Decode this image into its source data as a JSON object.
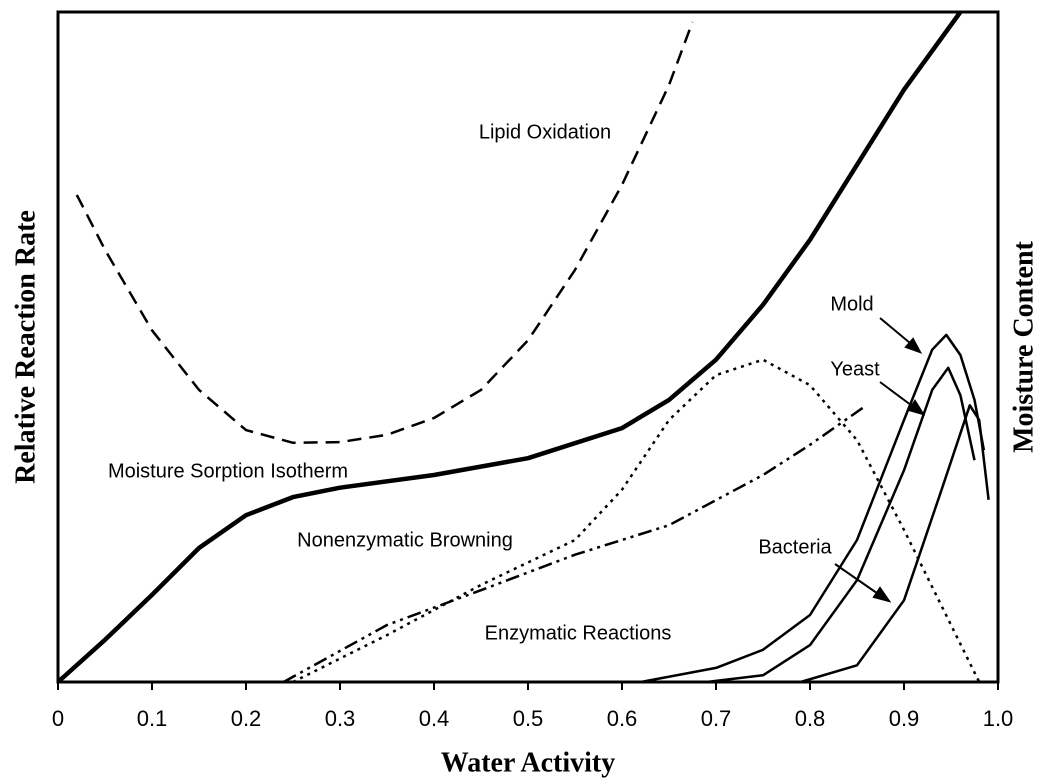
{
  "chart_data": {
    "type": "line",
    "xlabel": "Water Activity",
    "ylabel": "Relative Reaction Rate",
    "y2label": "Moisture Content",
    "xlim": [
      0,
      1
    ],
    "ylim": [
      0,
      100
    ],
    "xticks": [
      0,
      0.1,
      0.2,
      0.3,
      0.4,
      0.5,
      0.6,
      0.7,
      0.8,
      0.9,
      {
        "value": 1,
        "label": "1.0"
      }
    ],
    "series": [
      {
        "name": "Moisture Sorption Isotherm",
        "color": "#000",
        "style": "solid",
        "width": 4.5,
        "x": [
          0,
          0.05,
          0.1,
          0.15,
          0.2,
          0.25,
          0.3,
          0.4,
          0.5,
          0.6,
          0.65,
          0.7,
          0.75,
          0.8,
          0.85,
          0.9,
          0.96
        ],
        "values": [
          0,
          6.3,
          13,
          20,
          24.9,
          27.6,
          29,
          30.9,
          33.4,
          37.9,
          42.1,
          48.1,
          56.3,
          66,
          77.2,
          88.4,
          100
        ]
      },
      {
        "name": "Lipid Oxidation",
        "color": "#000",
        "style": "dashed",
        "width": 2.5,
        "x": [
          0.02,
          0.05,
          0.1,
          0.15,
          0.2,
          0.25,
          0.3,
          0.35,
          0.4,
          0.45,
          0.5,
          0.55,
          0.6,
          0.65,
          0.675
        ],
        "values": [
          72.7,
          64.5,
          52.5,
          43.6,
          37.6,
          35.7,
          35.8,
          36.9,
          39.4,
          43.6,
          51,
          61.5,
          74.2,
          89.1,
          98.5
        ]
      },
      {
        "name": "Nonenzymatic Browning",
        "color": "#000",
        "style": "dotted",
        "width": 2.5,
        "x": [
          0.25,
          0.35,
          0.45,
          0.55,
          0.6,
          0.65,
          0.7,
          0.75,
          0.8,
          0.85,
          0.9,
          0.95,
          0.98
        ],
        "values": [
          0,
          7,
          14.5,
          21.2,
          28.7,
          39.1,
          45.8,
          48.1,
          44.3,
          36.1,
          22.7,
          8.5,
          0
        ]
      },
      {
        "name": "Enzymatic Reactions",
        "color": "#000",
        "style": "dashdot",
        "width": 2.5,
        "x": [
          0.24,
          0.35,
          0.45,
          0.55,
          0.65,
          0.75,
          0.8,
          0.86
        ],
        "values": [
          0,
          8.5,
          13.7,
          19,
          23.4,
          30.9,
          35.4,
          41.3
        ]
      },
      {
        "name": "Mold",
        "color": "#000",
        "style": "solid",
        "width": 2.5,
        "x": [
          0.62,
          0.7,
          0.75,
          0.8,
          0.85,
          0.9,
          0.93,
          0.945,
          0.96,
          0.975,
          0.985
        ],
        "values": [
          0,
          2.1,
          4.8,
          10,
          21.2,
          39.1,
          49.6,
          51.8,
          48.8,
          42.1,
          34.6
        ]
      },
      {
        "name": "Yeast",
        "color": "#000",
        "style": "solid",
        "width": 2.5,
        "x": [
          0.69,
          0.75,
          0.8,
          0.85,
          0.9,
          0.93,
          0.947,
          0.96,
          0.975
        ],
        "values": [
          0,
          1,
          5.5,
          15.2,
          31.6,
          43.6,
          46.9,
          42.8,
          33.1
        ]
      },
      {
        "name": "Bacteria",
        "color": "#000",
        "style": "solid",
        "width": 2.5,
        "x": [
          0.79,
          0.85,
          0.9,
          0.94,
          0.97,
          0.98,
          0.99
        ],
        "values": [
          0,
          2.5,
          12.2,
          28.7,
          41.3,
          39.1,
          27.2
        ]
      }
    ]
  }
}
